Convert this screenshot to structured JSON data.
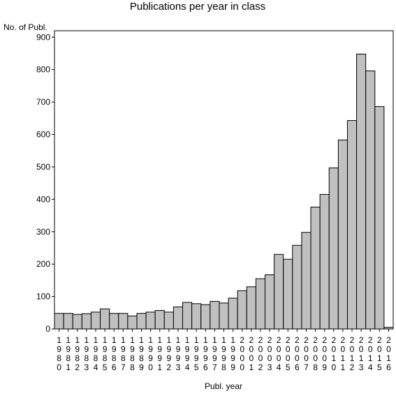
{
  "chart_data": {
    "type": "bar",
    "title": "Publications per year in class",
    "ylabel": "No. of Publ.",
    "xlabel": "Publ. year",
    "ylim": [
      0,
      920
    ],
    "yticks": [
      0,
      100,
      200,
      300,
      400,
      500,
      600,
      700,
      800,
      900
    ],
    "categories": [
      "1980",
      "1981",
      "1982",
      "1983",
      "1984",
      "1985",
      "1986",
      "1987",
      "1988",
      "1989",
      "1990",
      "1991",
      "1992",
      "1993",
      "1994",
      "1995",
      "1996",
      "1997",
      "1998",
      "1999",
      "2000",
      "2001",
      "2002",
      "2003",
      "2004",
      "2005",
      "2006",
      "2007",
      "2008",
      "2009",
      "2010",
      "2011",
      "2012",
      "2013",
      "2014",
      "2015",
      "2016"
    ],
    "values": [
      48,
      48,
      45,
      47,
      52,
      62,
      48,
      48,
      40,
      48,
      52,
      57,
      52,
      68,
      82,
      78,
      75,
      85,
      80,
      95,
      118,
      130,
      155,
      167,
      230,
      215,
      258,
      298,
      376,
      415,
      497,
      583,
      643,
      848,
      796,
      686,
      5
    ],
    "colors": {
      "bar_fill": "#c0c0c0",
      "bar_stroke": "#000000"
    },
    "grid": false
  }
}
